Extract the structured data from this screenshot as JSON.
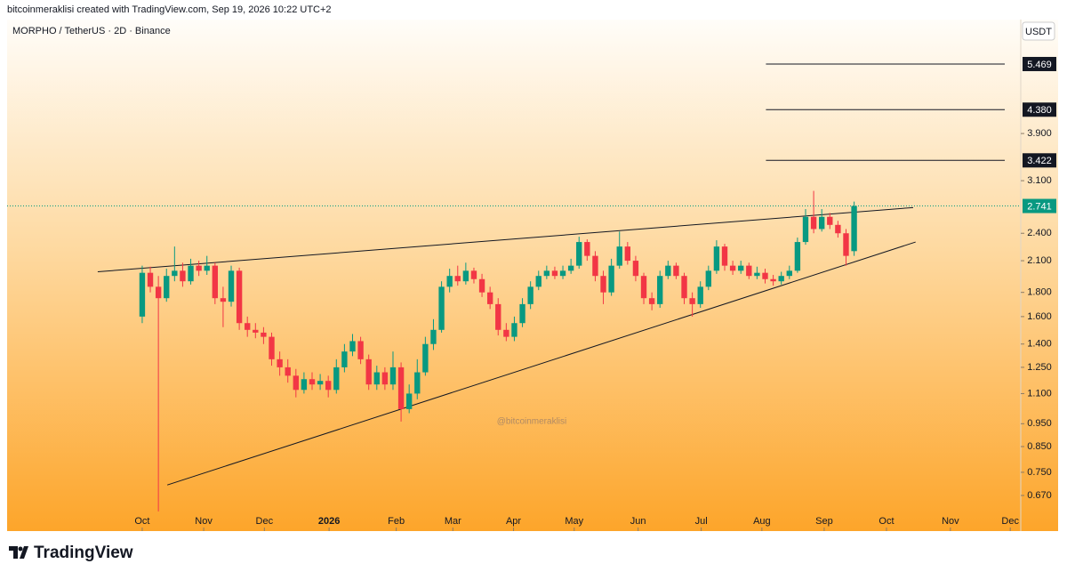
{
  "header": {
    "text": "bitcoinmeraklisi created with TradingView.com, Sep 19, 2026 10:22 UTC+2"
  },
  "chart_data": {
    "type": "candlestick",
    "symbol": "MORPHO / TetherUS · 2D · Binance",
    "currency": "USDT",
    "watermark": "@bitcoinmeraklisi",
    "log_scale": true,
    "up_color": "#089981",
    "down_color": "#f23645",
    "open": [
      1.6,
      1.98,
      1.85,
      1.75,
      1.95,
      2.0,
      1.9,
      2.05,
      2.0,
      2.05,
      1.75,
      1.72,
      2.0,
      1.55,
      1.5,
      1.48,
      1.45,
      1.3,
      1.25,
      1.2,
      1.12,
      1.18,
      1.15,
      1.17,
      1.12,
      1.25,
      1.35,
      1.42,
      1.3,
      1.15,
      1.22,
      1.15,
      1.25,
      1.02,
      1.1,
      1.22,
      1.4,
      1.5,
      1.85,
      1.95,
      1.9,
      2.0,
      1.92,
      1.8,
      1.7,
      1.5,
      1.45,
      1.55,
      1.7,
      1.85,
      1.95,
      2.0,
      1.95,
      2.0,
      2.05,
      2.3,
      2.15,
      1.95,
      1.8,
      2.05,
      2.25,
      2.1,
      1.95,
      1.75,
      1.7,
      1.95,
      2.05,
      1.95,
      1.75,
      1.7,
      1.85,
      2.0,
      2.25,
      2.05,
      2.0,
      2.05,
      1.95,
      1.98,
      1.92,
      1.9,
      1.95,
      2.0,
      2.3,
      2.6,
      2.45,
      2.6,
      2.5,
      2.4,
      2.2
    ],
    "high": [
      2.05,
      2.04,
      1.95,
      2.02,
      2.25,
      2.08,
      2.12,
      2.1,
      2.15,
      2.08,
      1.85,
      2.05,
      2.03,
      1.6,
      1.55,
      1.52,
      1.48,
      1.35,
      1.3,
      1.24,
      1.22,
      1.22,
      1.21,
      1.2,
      1.3,
      1.4,
      1.47,
      1.45,
      1.33,
      1.26,
      1.25,
      1.35,
      1.28,
      1.15,
      1.3,
      1.45,
      1.58,
      1.9,
      2.02,
      2.05,
      2.08,
      2.03,
      1.97,
      1.85,
      1.75,
      1.55,
      1.6,
      1.75,
      1.9,
      2.0,
      2.05,
      2.04,
      2.05,
      2.12,
      2.36,
      2.33,
      2.2,
      2.0,
      2.12,
      2.42,
      2.3,
      2.15,
      1.98,
      1.8,
      2.0,
      2.1,
      2.08,
      1.98,
      1.8,
      1.9,
      2.05,
      2.32,
      2.28,
      2.1,
      2.1,
      2.08,
      2.04,
      2.02,
      1.96,
      1.99,
      2.05,
      2.35,
      2.7,
      2.95,
      2.7,
      2.65,
      2.55,
      2.45,
      2.8
    ],
    "low": [
      1.55,
      1.8,
      0.62,
      1.72,
      1.9,
      1.85,
      1.87,
      1.95,
      1.96,
      1.7,
      1.52,
      1.68,
      1.5,
      1.45,
      1.44,
      1.4,
      1.26,
      1.2,
      1.16,
      1.08,
      1.1,
      1.12,
      1.12,
      1.08,
      1.1,
      1.22,
      1.32,
      1.27,
      1.12,
      1.12,
      1.12,
      1.12,
      0.96,
      1.0,
      1.07,
      1.2,
      1.36,
      1.48,
      1.8,
      1.86,
      1.87,
      1.88,
      1.76,
      1.66,
      1.46,
      1.42,
      1.42,
      1.52,
      1.66,
      1.82,
      1.92,
      1.92,
      1.92,
      1.97,
      2.02,
      2.1,
      1.9,
      1.7,
      1.77,
      2.02,
      2.06,
      1.9,
      1.7,
      1.65,
      1.67,
      1.92,
      1.92,
      1.7,
      1.6,
      1.67,
      1.82,
      1.97,
      2.0,
      1.96,
      1.97,
      1.92,
      1.92,
      1.88,
      1.86,
      1.87,
      1.92,
      1.98,
      2.27,
      2.4,
      2.42,
      2.45,
      2.35,
      2.05,
      2.15
    ],
    "close": [
      1.98,
      1.85,
      1.75,
      1.95,
      2.0,
      1.9,
      2.05,
      2.0,
      2.05,
      1.75,
      1.72,
      2.0,
      1.55,
      1.5,
      1.48,
      1.45,
      1.3,
      1.25,
      1.2,
      1.12,
      1.18,
      1.15,
      1.17,
      1.12,
      1.25,
      1.35,
      1.42,
      1.3,
      1.15,
      1.22,
      1.15,
      1.25,
      1.02,
      1.1,
      1.22,
      1.4,
      1.5,
      1.85,
      1.95,
      1.9,
      2.0,
      1.92,
      1.8,
      1.7,
      1.5,
      1.45,
      1.55,
      1.7,
      1.85,
      1.95,
      2.0,
      1.95,
      2.0,
      2.05,
      2.3,
      2.15,
      1.95,
      1.8,
      2.05,
      2.25,
      2.1,
      1.95,
      1.75,
      1.7,
      1.95,
      2.05,
      1.95,
      1.75,
      1.7,
      1.85,
      2.0,
      2.25,
      2.05,
      2.0,
      2.05,
      1.95,
      1.98,
      1.92,
      1.9,
      1.95,
      2.0,
      2.3,
      2.6,
      2.45,
      2.6,
      2.5,
      2.4,
      2.15,
      2.741
    ],
    "xlim": [
      -16.7,
      108.6
    ],
    "xticks": [
      {
        "value": 0,
        "label": "Oct"
      },
      {
        "value": 7.6,
        "label": "Nov"
      },
      {
        "value": 15.1,
        "label": "Dec"
      },
      {
        "value": 23.1,
        "label": "2026"
      },
      {
        "value": 31.4,
        "label": "Feb"
      },
      {
        "value": 38.4,
        "label": "Mar"
      },
      {
        "value": 45.9,
        "label": "Apr"
      },
      {
        "value": 53.4,
        "label": "May"
      },
      {
        "value": 61.3,
        "label": "Jun"
      },
      {
        "value": 69.1,
        "label": "Jul"
      },
      {
        "value": 76.6,
        "label": "Aug"
      },
      {
        "value": 84.3,
        "label": "Sep"
      },
      {
        "value": 92,
        "label": "Oct"
      },
      {
        "value": 99.9,
        "label": "Nov"
      },
      {
        "value": 107.3,
        "label": "Dec"
      }
    ],
    "ylim": [
      0.5634,
      6.79
    ],
    "yticks": [
      {
        "value": 0.67,
        "label": "0.670"
      },
      {
        "value": 0.75,
        "label": "0.750"
      },
      {
        "value": 0.85,
        "label": "0.850"
      },
      {
        "value": 0.95,
        "label": "0.950"
      },
      {
        "value": 1.1,
        "label": "1.100"
      },
      {
        "value": 1.25,
        "label": "1.250"
      },
      {
        "value": 1.4,
        "label": "1.400"
      },
      {
        "value": 1.6,
        "label": "1.600"
      },
      {
        "value": 1.8,
        "label": "1.800"
      },
      {
        "value": 2.1,
        "label": "2.100"
      },
      {
        "value": 2.4,
        "label": "2.400"
      },
      {
        "value": 3.1,
        "label": "3.100"
      },
      {
        "value": 3.9,
        "label": "3.900"
      }
    ],
    "levels": [
      5.469,
      {
        "value": 4.38,
        "label": "4.380"
      },
      3.422
    ],
    "levels_start": 77.1,
    "trendlines": [
      {
        "x": [
          -5.5,
          95.3
        ],
        "y": [
          1.99,
          2.72
        ]
      },
      {
        "x": [
          3.1,
          95.6
        ],
        "y": [
          0.705,
          2.3
        ]
      }
    ]
  },
  "footer": {
    "brand": "TradingView"
  }
}
